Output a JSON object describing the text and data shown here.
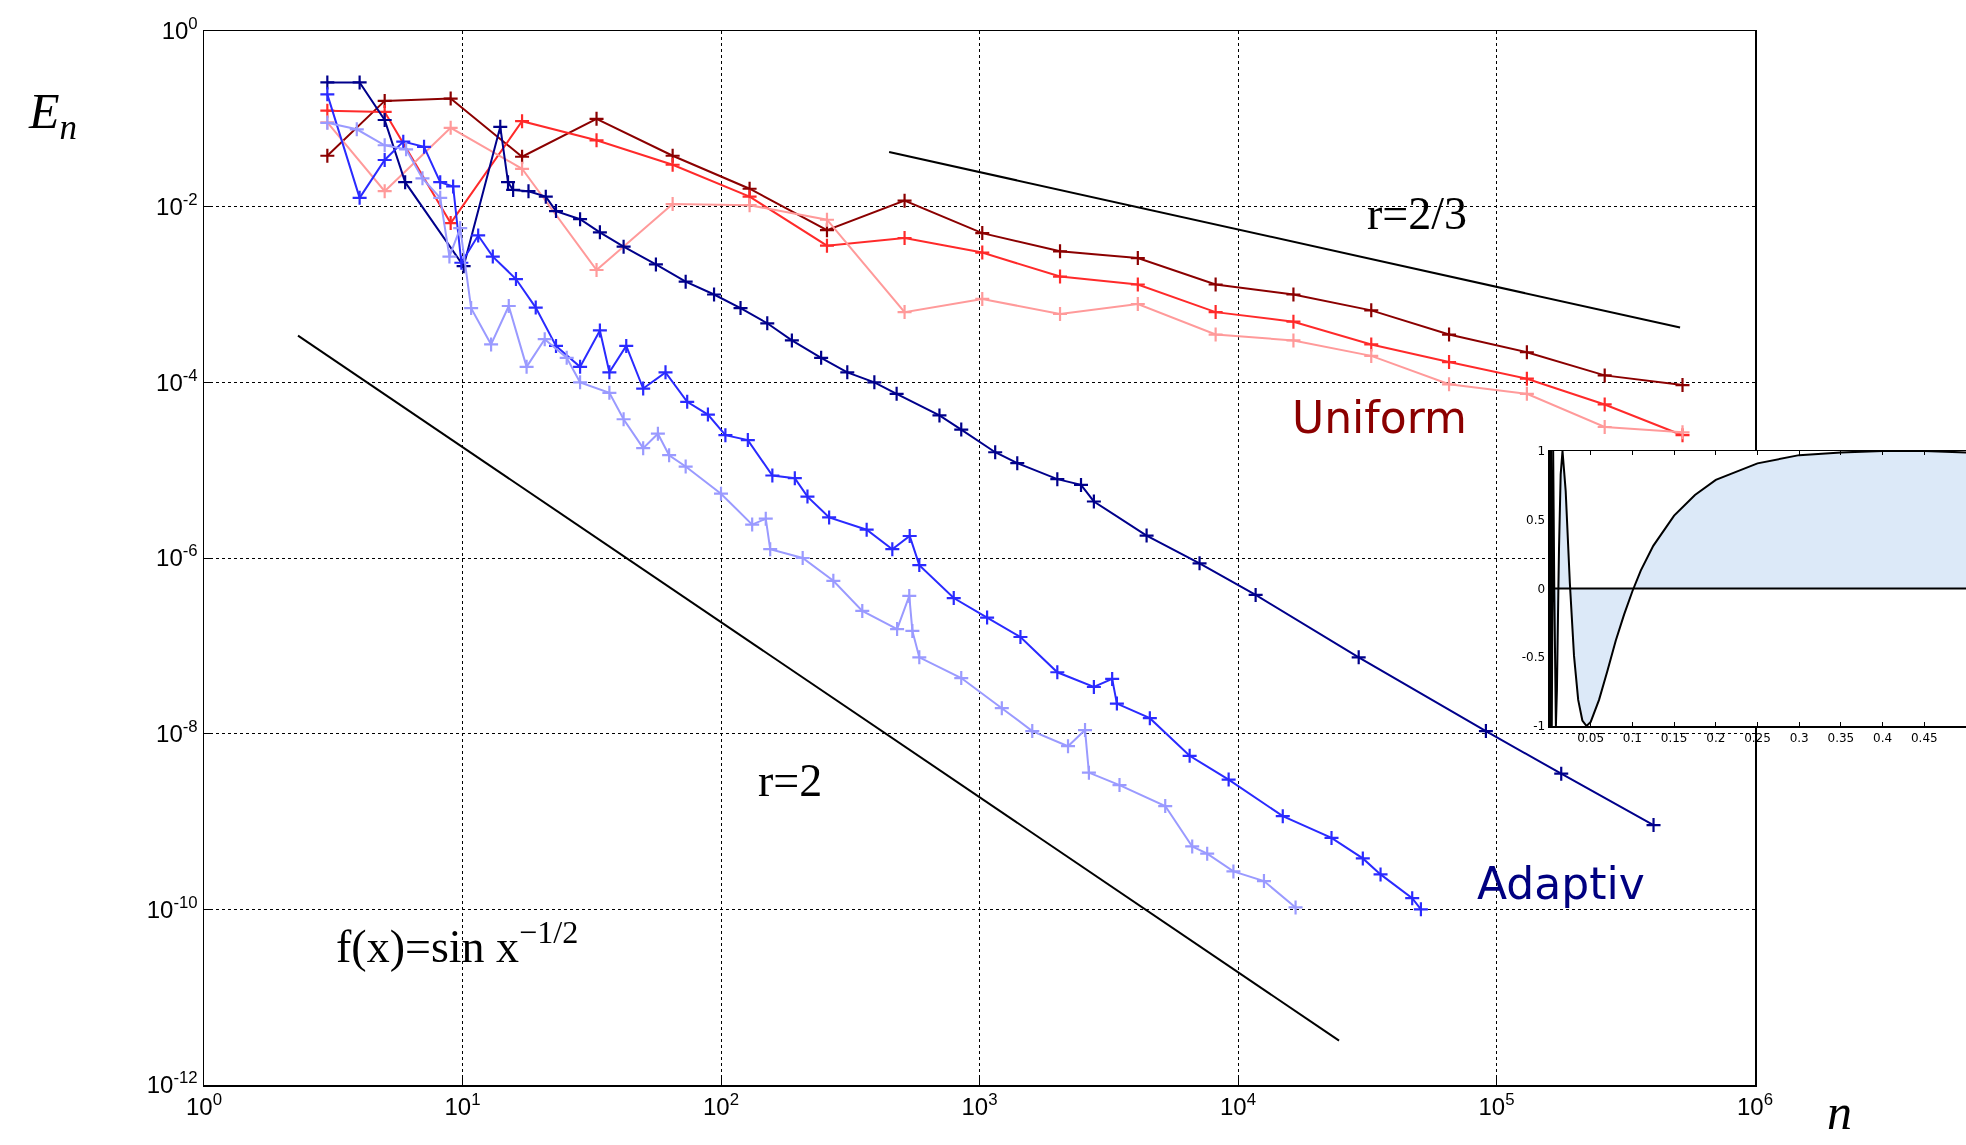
{
  "chart_data": [
    {
      "type": "line",
      "xlabel": "n",
      "ylabel": "E$_{n}$",
      "log": "xy",
      "grid": true,
      "marker": "cross",
      "line_style": "solid",
      "xlim": [
        1,
        1000000
      ],
      "ylim": [
        1e-12,
        1
      ],
      "xticks": [
        {
          "value": 1,
          "label": "10$^{0}$"
        },
        {
          "value": 10,
          "label": "10$^{1}$"
        },
        {
          "value": 100,
          "label": "10$^{2}$"
        },
        {
          "value": 1000,
          "label": "10$^{3}$"
        },
        {
          "value": 10000,
          "label": "10$^{4}$"
        },
        {
          "value": 100000,
          "label": "10$^{5}$"
        },
        {
          "value": 1000000,
          "label": "10$^{6}$"
        }
      ],
      "yticks": [
        {
          "value": 1,
          "label": "10$^{0}$"
        },
        {
          "value": 0.01,
          "label": "10$^{-2}$"
        },
        {
          "value": 0.0001,
          "label": "10$^{-4}$"
        },
        {
          "value": 1e-06,
          "label": "10$^{-6}$"
        },
        {
          "value": 1e-08,
          "label": "10$^{-8}$"
        },
        {
          "value": 1e-10,
          "label": "10$^{-10}$"
        },
        {
          "value": 1e-12,
          "label": "10$^{-12}$"
        }
      ],
      "series": [
        {
          "color": "#8b0000",
          "x": [
            3,
            5,
            9,
            17,
            33,
            65,
            129,
            257,
            513,
            1025,
            2049,
            4097,
            8193,
            16385,
            32769,
            65537,
            131073,
            262145,
            524289
          ],
          "values": [
            0.038,
            0.16,
            0.17,
            0.037,
            0.1,
            0.038,
            0.016,
            0.0054,
            0.0117,
            0.005,
            0.0031,
            0.0026,
            0.0013,
            0.001,
            0.00066,
            0.00035,
            0.00022,
            0.00012,
            9.3e-05
          ]
        },
        {
          "color": "#ff2a2a",
          "x": [
            3,
            5,
            9,
            17,
            33,
            65,
            129,
            257,
            513,
            1025,
            2049,
            4097,
            8193,
            16385,
            32769,
            65537,
            131073,
            262145,
            524289
          ],
          "values": [
            0.124,
            0.12,
            0.0065,
            0.094,
            0.057,
            0.03,
            0.013,
            0.0036,
            0.0044,
            0.003,
            0.0016,
            0.0013,
            0.00063,
            0.00049,
            0.00027,
            0.00017,
            0.00011,
            5.6e-05,
            2.5e-05
          ]
        },
        {
          "color": "#ff9a9a",
          "x": [
            3,
            5,
            9,
            17,
            33,
            65,
            129,
            257,
            513,
            1025,
            2049,
            4097,
            8193,
            16385,
            32769,
            65537,
            131073,
            262145,
            524289
          ],
          "values": [
            0.091,
            0.015,
            0.079,
            0.027,
            0.0019,
            0.0107,
            0.0104,
            0.0071,
            0.00063,
            0.00089,
            0.0006,
            0.00078,
            0.00035,
            0.0003,
            0.0002,
            9.5e-05,
            7.4e-05,
            3.1e-05,
            2.7e-05
          ]
        },
        {
          "color": "#00008b",
          "x": [
            3,
            4,
            5,
            6,
            10.1,
            14,
            15,
            15.7,
            18,
            21,
            23,
            28.5,
            34,
            42,
            56,
            73,
            94,
            119,
            151,
            188,
            244,
            308,
            392,
            478,
            700,
            850,
            1150,
            1400,
            2000,
            2470,
            2770,
            4430,
            7100,
            11700,
            29300,
            91000,
            178000,
            405000
          ],
          "values": [
            0.26,
            0.26,
            0.097,
            0.019,
            0.0021,
            0.081,
            0.019,
            0.0155,
            0.015,
            0.013,
            0.0089,
            0.0072,
            0.0051,
            0.0035,
            0.0022,
            0.0014,
            0.001,
            0.0007,
            0.00047,
            0.0003,
            0.00019,
            0.00013,
            0.0001,
            7.4e-05,
            4.2e-05,
            2.9e-05,
            1.6e-05,
            1.2e-05,
            7.9e-06,
            6.8e-06,
            4.4e-06,
            1.8e-06,
            8.7e-07,
            3.8e-07,
            7.4e-08,
            1.07e-08,
            3.5e-09,
            9.1e-10
          ]
        },
        {
          "color": "#2a2aff",
          "x": [
            3,
            4,
            5,
            5.9,
            7.1,
            8.2,
            9.2,
            9.9,
            11.5,
            13.1,
            16.1,
            19.2,
            23,
            28.5,
            34,
            37,
            43,
            50,
            61,
            74,
            89,
            104,
            127,
            158,
            193,
            216,
            262,
            366,
            460,
            537,
            585,
            795,
            1070,
            1440,
            2000,
            2770,
            3260,
            3400,
            4560,
            6500,
            9200,
            14900,
            23000,
            30400,
            35600,
            47200,
            51000
          ],
          "values": [
            0.19,
            0.0126,
            0.034,
            0.055,
            0.048,
            0.019,
            0.017,
            0.0023,
            0.0047,
            0.0027,
            0.0015,
            0.00071,
            0.00026,
            0.00015,
            0.00039,
            0.00013,
            0.00026,
            8.5e-05,
            0.00013,
            6e-05,
            4.3e-05,
            2.5e-05,
            2.2e-05,
            8.7e-06,
            8.1e-06,
            5e-06,
            2.9e-06,
            2.1e-06,
            1.26e-06,
            1.78e-06,
            8.3e-07,
            3.5e-07,
            2.1e-07,
            1.26e-07,
            5e-08,
            3.4e-08,
            4.2e-08,
            2.2e-08,
            1.5e-08,
            5.6e-09,
            3e-09,
            1.15e-09,
            6.5e-10,
            3.8e-10,
            2.5e-10,
            1.34e-10,
            1e-10
          ]
        },
        {
          "color": "#9a9aff",
          "x": [
            3,
            3.9,
            5,
            6.05,
            7,
            8.2,
            8.9,
            9.8,
            10.8,
            12.9,
            15.1,
            17.7,
            20.8,
            25.3,
            28.5,
            37,
            42,
            50,
            57,
            63,
            73,
            100,
            132,
            149,
            155,
            207,
            272,
            352,
            480,
            535,
            550,
            585,
            850,
            1220,
            1600,
            2200,
            2560,
            2650,
            3480,
            5230,
            6650,
            7600,
            9600,
            12600,
            16700
          ],
          "values": [
            0.09,
            0.076,
            0.05,
            0.045,
            0.021,
            0.0126,
            0.0027,
            0.0057,
            0.0007,
            0.00027,
            0.00074,
            0.00015,
            0.00031,
            0.00019,
            0.0001,
            7.6e-05,
            3.8e-05,
            1.78e-05,
            2.6e-05,
            1.48e-05,
            1.1e-05,
            5.4e-06,
            2.4e-06,
            2.8e-06,
            1.26e-06,
            1e-06,
            5.5e-07,
            2.5e-07,
            1.55e-07,
            3.7e-07,
            1.48e-07,
            7.4e-08,
            4.3e-08,
            1.95e-08,
            1.07e-08,
            7.2e-09,
            1.1e-08,
            3.6e-09,
            2.6e-09,
            1.5e-09,
            5.2e-10,
            4.3e-10,
            2.7e-10,
            2.1e-10,
            1.05e-10
          ]
        },
        {
          "color": "#000000",
          "marker": "none",
          "x": [
            447,
            513000
          ],
          "values": [
            0.0419,
            0.00042
          ]
        },
        {
          "color": "#000000",
          "marker": "none",
          "x": [
            2.31,
            24600
          ],
          "values": [
            0.00034,
            3.2e-12
          ]
        }
      ],
      "annotations": [
        "r=2/3",
        "r=2",
        "Uniform",
        "Adaptiv",
        "f(x)=sin x$^{−1/2}$"
      ]
    },
    {
      "type": "area",
      "grid": false,
      "ref_lines": [
        {
          "axis": "y",
          "value": 0,
          "color": "#000000"
        }
      ],
      "xlim": [
        0,
        0.5
      ],
      "ylim": [
        -1,
        1
      ],
      "xticks": [
        {
          "value": 0,
          "label": null
        },
        0.05,
        0.1,
        0.15,
        0.2,
        0.25,
        0.3,
        0.35,
        0.4,
        0.45
      ],
      "yticks": [
        -1,
        -0.5,
        0,
        0.5,
        1
      ],
      "series": [
        {
          "color": "#dce9f8",
          "x": [
            0.00092,
            0.00112,
            0.0014,
            0.0018,
            0.0024,
            0.00335,
            0.005,
            0.00633,
            0.00827,
            0.0095,
            0.01126,
            0.012,
            0.014,
            0.0162,
            0.02,
            0.025,
            0.03,
            0.035,
            0.04,
            0.045,
            0.05,
            0.06,
            0.07,
            0.08,
            0.09,
            0.1,
            0.11,
            0.125,
            0.15,
            0.175,
            0.2,
            0.25,
            0.3,
            0.35,
            0.4,
            0.45,
            0.5
          ],
          "values": [
            1,
            -1,
            1,
            -1,
            1,
            -1,
            1,
            0,
            -1,
            -0.74,
            0,
            0.29,
            0.83,
            1,
            0.71,
            0.04,
            -0.49,
            -0.81,
            -0.96,
            -1,
            -0.97,
            -0.81,
            -0.6,
            -0.38,
            -0.19,
            -0.02,
            0.13,
            0.31,
            0.53,
            0.68,
            0.79,
            0.91,
            0.97,
            0.99,
            1,
            1,
            0.99
          ]
        }
      ]
    }
  ]
}
